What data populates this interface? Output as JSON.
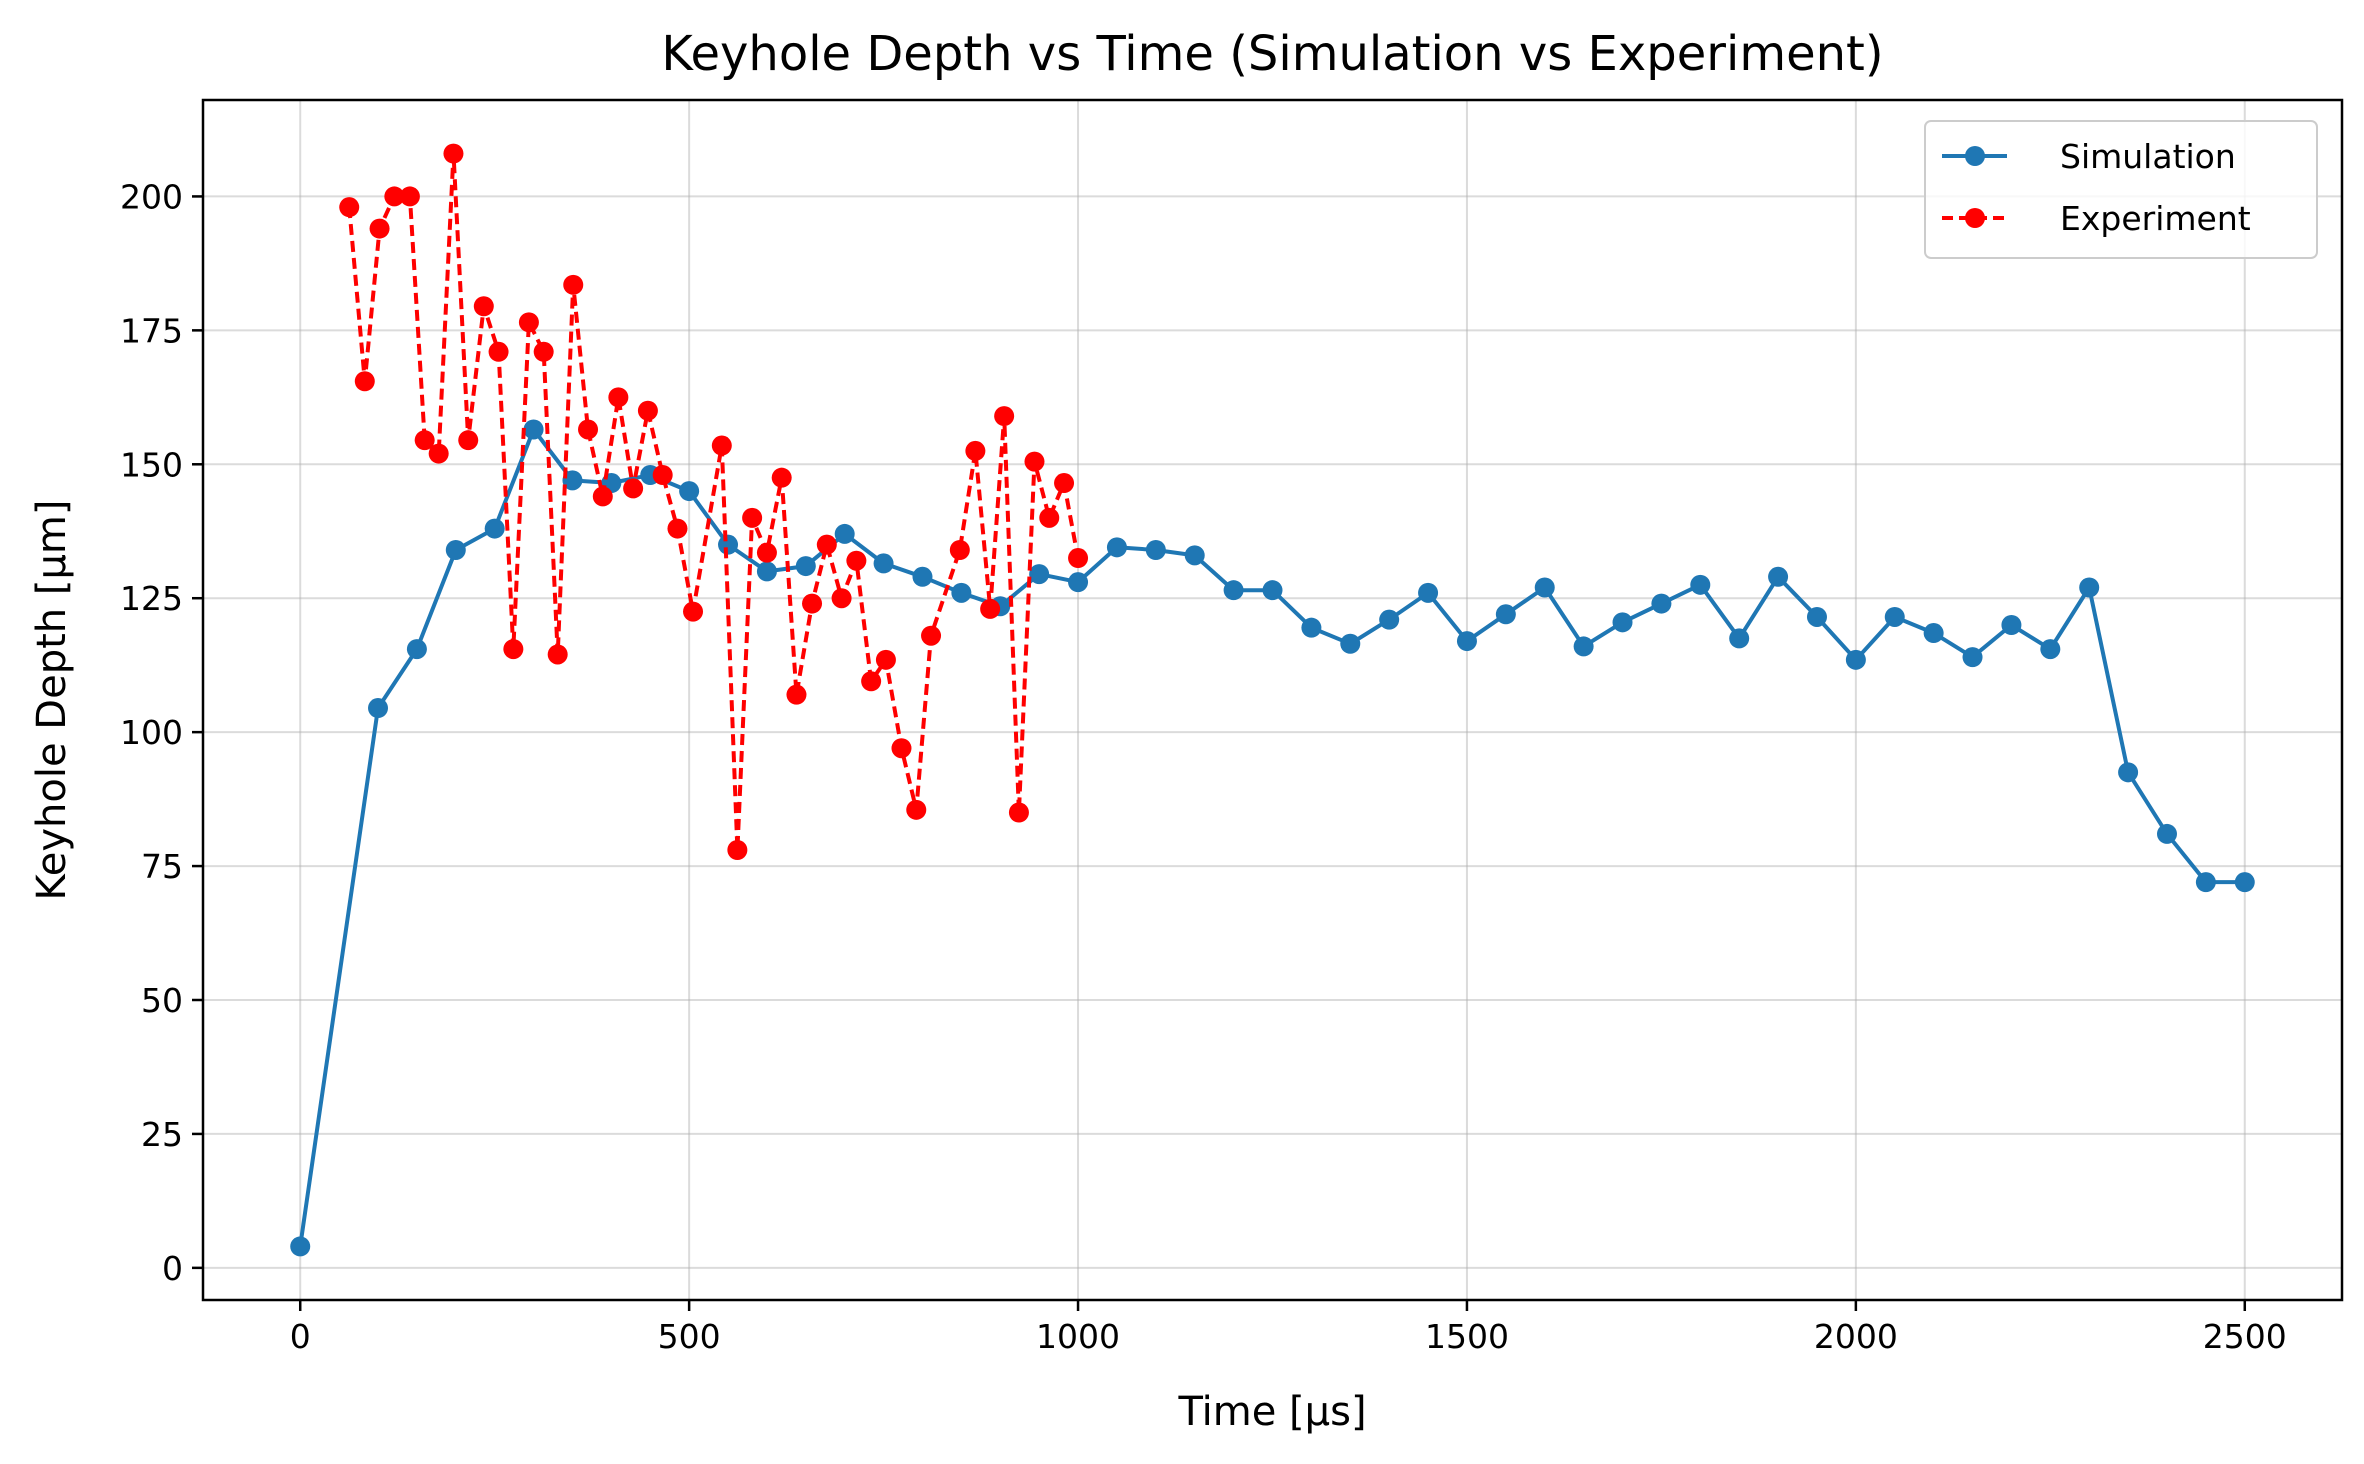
{
  "chart_data": {
    "type": "line",
    "title": "Keyhole Depth vs Time (Simulation vs Experiment)",
    "xlabel": "Time [µs]",
    "ylabel": "Keyhole Depth [µm]",
    "xlim": [
      -125,
      2625
    ],
    "ylim": [
      -6,
      218
    ],
    "xticks": [
      0,
      500,
      1000,
      1500,
      2000,
      2500
    ],
    "yticks": [
      0,
      25,
      50,
      75,
      100,
      125,
      150,
      175,
      200
    ],
    "xtick_labels": [
      "0",
      "500",
      "1000",
      "1500",
      "2000",
      "2500"
    ],
    "ytick_labels": [
      "0",
      "25",
      "50",
      "75",
      "100",
      "125",
      "150",
      "175",
      "200"
    ],
    "grid": true,
    "legend_position": "top-right",
    "series": [
      {
        "name": "Simulation",
        "color": "#1f77b4",
        "line_style": "solid",
        "marker": "circle",
        "x": [
          0,
          100,
          150,
          200,
          250,
          300,
          350,
          400,
          450,
          500,
          550,
          600,
          650,
          700,
          750,
          800,
          850,
          900,
          950,
          1000,
          1050,
          1100,
          1150,
          1200,
          1250,
          1300,
          1350,
          1400,
          1450,
          1500,
          1550,
          1600,
          1650,
          1700,
          1750,
          1800,
          1850,
          1900,
          1950,
          2000,
          2050,
          2100,
          2150,
          2200,
          2250,
          2300,
          2350,
          2400,
          2450,
          2500
        ],
        "y": [
          4,
          104.5,
          115.5,
          134,
          138,
          156.5,
          147,
          146.5,
          148,
          145,
          135,
          130,
          131,
          137,
          131.5,
          129,
          126,
          123.5,
          129.5,
          128,
          134.5,
          134,
          133,
          126.5,
          126.5,
          119.5,
          116.5,
          121,
          126,
          117,
          122,
          127,
          116,
          120.5,
          124,
          127.5,
          117.5,
          129,
          121.5,
          113.5,
          121.5,
          118.5,
          114,
          120,
          115.5,
          127,
          92.5,
          81,
          72,
          72
        ]
      },
      {
        "name": "Experiment",
        "color": "#ff0000",
        "line_style": "dashed",
        "marker": "circle",
        "x": [
          63,
          83,
          102,
          121,
          141,
          160,
          178,
          197,
          216,
          236,
          255,
          274,
          294,
          313,
          331,
          351,
          370,
          389,
          409,
          428,
          447,
          466,
          485,
          505,
          542,
          562,
          581,
          600,
          619,
          638,
          658,
          677,
          696,
          715,
          734,
          753,
          773,
          792,
          811,
          848,
          868,
          887,
          905,
          924,
          944,
          963,
          982,
          1000
        ],
        "y": [
          198,
          165.5,
          194,
          200,
          200,
          154.5,
          152,
          208,
          154.5,
          179.5,
          171,
          115.5,
          176.5,
          171,
          114.5,
          183.5,
          156.5,
          144,
          162.5,
          145.5,
          160,
          148,
          138,
          122.5,
          153.5,
          78,
          140,
          133.5,
          147.5,
          107,
          124,
          135,
          125,
          132,
          109.5,
          113.5,
          97,
          85.5,
          118,
          134,
          152.5,
          123,
          159,
          85,
          150.5,
          140,
          146.5,
          132.5
        ]
      }
    ]
  }
}
